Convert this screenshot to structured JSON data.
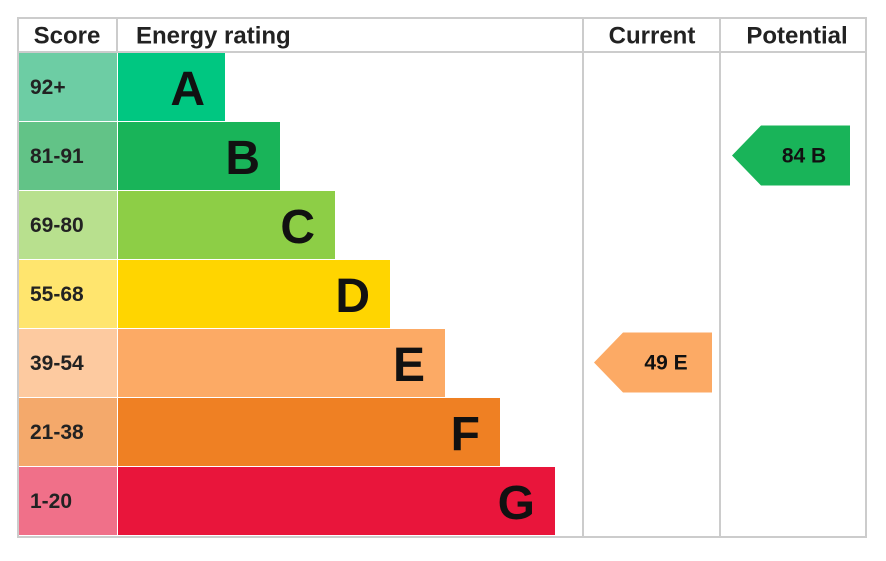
{
  "header": {
    "score": "Score",
    "energy_rating": "Energy rating",
    "current": "Current",
    "potential": "Potential"
  },
  "bands": [
    {
      "score": "92+",
      "letter": "A",
      "color": "#00c781",
      "light": "#6dcda4"
    },
    {
      "score": "81-91",
      "letter": "B",
      "color": "#19b459",
      "light": "#62c387"
    },
    {
      "score": "69-80",
      "letter": "C",
      "color": "#8dce46",
      "light": "#b8e08e"
    },
    {
      "score": "55-68",
      "letter": "D",
      "color": "#ffd500",
      "light": "#ffe56e"
    },
    {
      "score": "39-54",
      "letter": "E",
      "color": "#fcaa65",
      "light": "#fdcaa0"
    },
    {
      "score": "21-38",
      "letter": "F",
      "color": "#ef8023",
      "light": "#f4a96b"
    },
    {
      "score": "1-20",
      "letter": "G",
      "color": "#e9153b",
      "light": "#f07089"
    }
  ],
  "current": {
    "score": "49",
    "rating": "E"
  },
  "potential": {
    "score": "84",
    "rating": "B"
  }
}
